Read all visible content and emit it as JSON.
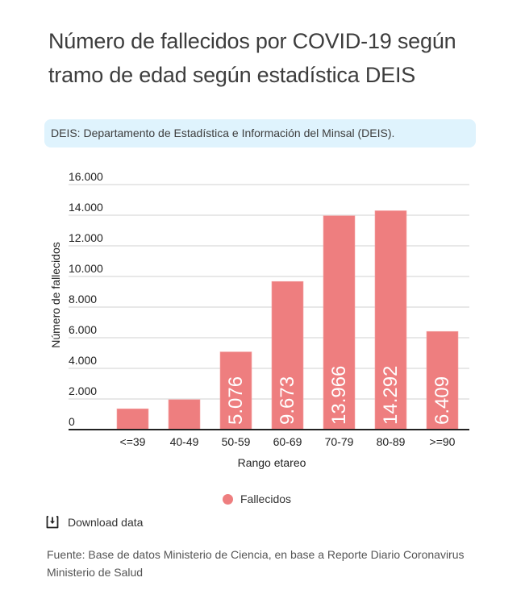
{
  "header": {
    "title": "Número de fallecidos por COVID-19 según tramo de edad según estadística DEIS"
  },
  "info_box": {
    "text": "DEIS: Departamento de Estadística e Información del Minsal (DEIS)."
  },
  "legend": {
    "label": "Fallecidos"
  },
  "download": {
    "label": "Download data",
    "icon": "download-icon"
  },
  "source": {
    "text": "Fuente: Base de datos Ministerio de Ciencia, en base a Reporte Diario Coronavirus Ministerio de Salud"
  },
  "colors": {
    "bar": "#ee7e7f",
    "grid": "#e0e0e0",
    "axis": "#222222",
    "info_bg": "#dff3fd"
  },
  "chart_data": {
    "type": "bar",
    "title": "Número de fallecidos por COVID-19 según tramo de edad según estadística DEIS",
    "xlabel": "Rango etareo",
    "ylabel": "Número de fallecidos",
    "categories": [
      "<=39",
      "40-49",
      "50-59",
      "60-69",
      "70-79",
      "80-89",
      ">=90"
    ],
    "series": [
      {
        "name": "Fallecidos",
        "values": [
          1360,
          1960,
          5076,
          9673,
          13966,
          14292,
          6409
        ],
        "data_labels": [
          "",
          "",
          "5.076",
          "9.673",
          "13.966",
          "14.292",
          "6.409"
        ]
      }
    ],
    "ylim": [
      0,
      16000
    ],
    "yticks": [
      0,
      2000,
      4000,
      6000,
      8000,
      10000,
      12000,
      14000,
      16000
    ],
    "ytick_labels": [
      "0",
      "2.000",
      "4.000",
      "6.000",
      "8.000",
      "10.000",
      "12.000",
      "14.000",
      "16.000"
    ],
    "grid": true,
    "legend_position": "bottom"
  }
}
